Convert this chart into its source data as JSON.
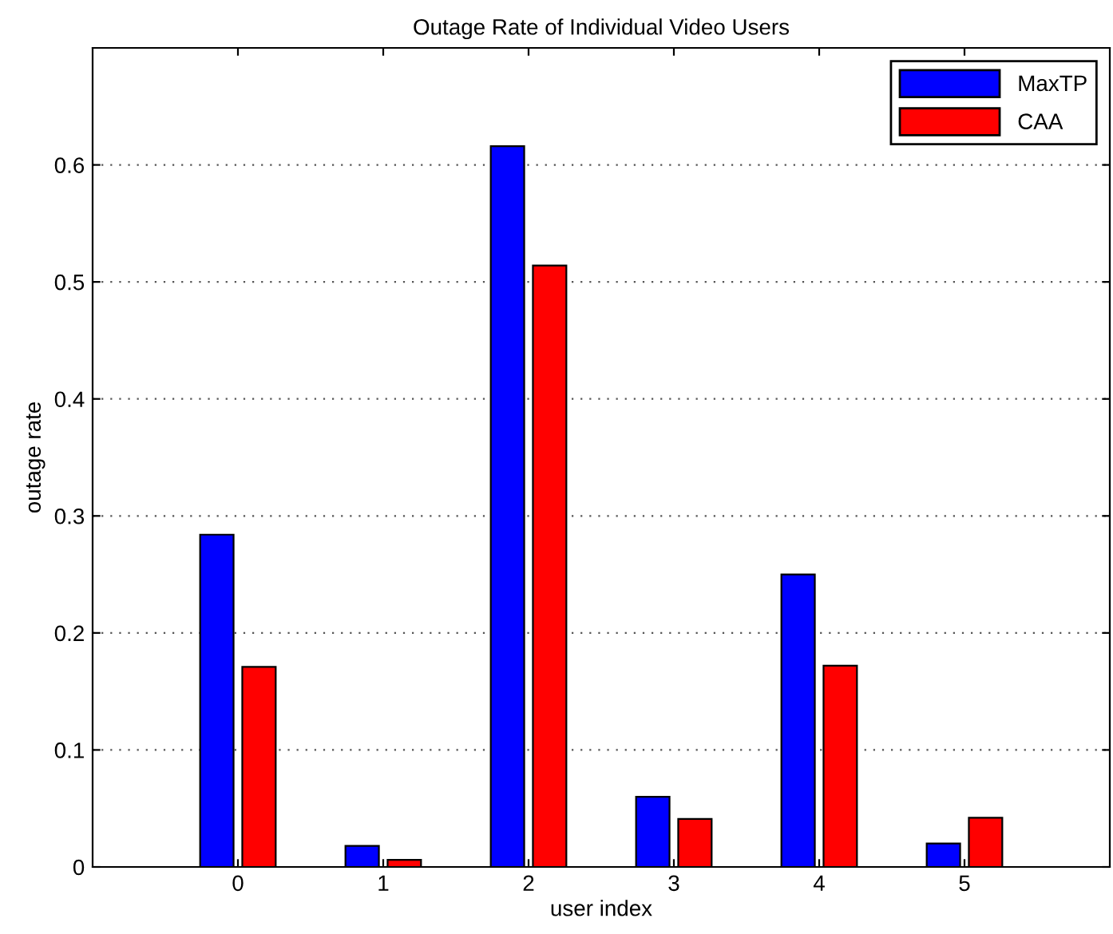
{
  "chart_data": {
    "type": "bar",
    "title": "Outage Rate of Individual Video Users",
    "xlabel": "user index",
    "ylabel": "outage rate",
    "categories": [
      "0",
      "1",
      "2",
      "3",
      "4",
      "5"
    ],
    "series": [
      {
        "name": "MaxTP",
        "color": "#0000ff",
        "values": [
          0.284,
          0.018,
          0.616,
          0.06,
          0.25,
          0.02
        ]
      },
      {
        "name": "CAA",
        "color": "#ff0000",
        "values": [
          0.171,
          0.006,
          0.514,
          0.041,
          0.172,
          0.042
        ]
      }
    ],
    "ylim": [
      0,
      0.7
    ],
    "yticks": [
      0,
      0.1,
      0.2,
      0.3,
      0.4,
      0.5,
      0.6
    ],
    "grid": "y",
    "legend": "top right",
    "line_style": "dotted"
  }
}
